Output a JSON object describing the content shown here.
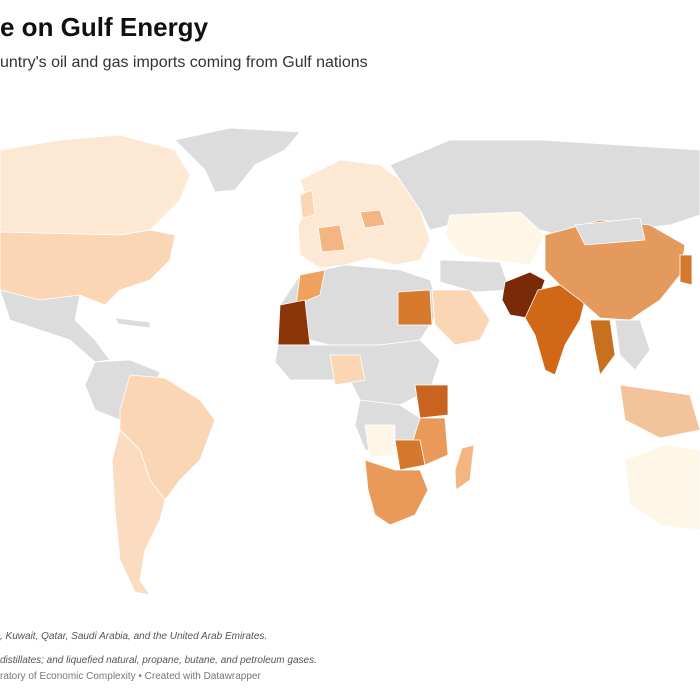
{
  "header": {
    "title": "e on Gulf Energy",
    "subtitle": "untry's oil and gas imports coming from Gulf nations"
  },
  "notes": [
    ", Kuwait, Qatar, Saudi Arabia, and the United Arab Emirates.",
    "distillates; and liquefied natural, propane, butane, and petroleum gases."
  ],
  "source": "ratory of Economic Complexity • Created with Datawrapper"
}
